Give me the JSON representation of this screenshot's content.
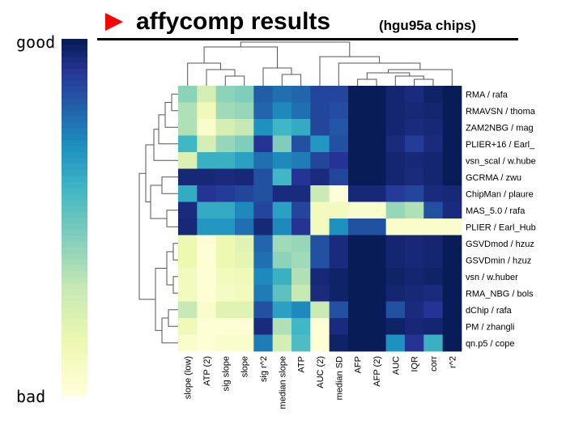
{
  "slide": {
    "title": "affycomp results",
    "subtitle": "(hgu95a chips)",
    "legend_good": "good",
    "legend_bad": "bad",
    "colors": {
      "accent": "#ff0000",
      "text": "#000000"
    }
  },
  "chart_data": {
    "type": "heatmap",
    "title": "affycomp results (hgu95a chips)",
    "columns": [
      "slope (low)",
      "ATP (2)",
      "sig slope",
      "slope",
      "sig r^2",
      "median slope",
      "ATP",
      "AUC (2)",
      "median SD",
      "AFP",
      "AFP (2)",
      "AUC",
      "IQR",
      "corr",
      "r^2"
    ],
    "rows": [
      "RMA / rafa",
      "RMAVSN / thoma",
      "ZAM2NBG / mag",
      "PLIER+16 / Earl_",
      "vsn_scal / w.hube",
      "GCRMA / zwu",
      "ChipMan / plaure",
      "MAS_5.0 / rafa",
      "PLIER / Earl_Hub",
      "GSVDmod / hzuz",
      "GSVDmin / hzuz",
      "vsn / w.huber",
      "RMA_NBG / bols",
      "dChip / rafa",
      "PM / zhangli",
      "qn.p5 / cope"
    ],
    "value_scale": "0 = bad (pale yellow), 1 = good (dark navy)",
    "values": [
      [
        0.42,
        0.25,
        0.42,
        0.45,
        0.82,
        0.78,
        0.8,
        0.88,
        0.88,
        1.0,
        1.0,
        0.97,
        0.95,
        0.98,
        1.0
      ],
      [
        0.35,
        0.12,
        0.38,
        0.4,
        0.8,
        0.72,
        0.78,
        0.88,
        0.86,
        1.0,
        1.0,
        0.97,
        0.96,
        0.97,
        1.0
      ],
      [
        0.35,
        0.05,
        0.25,
        0.3,
        0.7,
        0.58,
        0.62,
        0.88,
        0.84,
        1.0,
        1.0,
        0.97,
        0.95,
        0.96,
        1.0
      ],
      [
        0.58,
        0.25,
        0.4,
        0.45,
        0.92,
        0.45,
        0.85,
        0.68,
        0.85,
        1.0,
        1.0,
        0.95,
        0.9,
        0.95,
        1.0
      ],
      [
        0.22,
        0.6,
        0.6,
        0.65,
        0.78,
        0.72,
        0.75,
        0.88,
        0.92,
        1.0,
        1.0,
        0.97,
        0.96,
        0.97,
        1.0
      ],
      [
        0.96,
        0.96,
        0.95,
        0.96,
        0.85,
        0.58,
        0.92,
        0.95,
        0.88,
        1.0,
        1.0,
        0.97,
        0.95,
        0.97,
        1.0
      ],
      [
        0.62,
        0.92,
        0.9,
        0.88,
        0.85,
        0.95,
        0.95,
        0.28,
        0.0,
        0.96,
        0.96,
        0.9,
        0.88,
        0.95,
        0.96
      ],
      [
        0.95,
        0.62,
        0.62,
        0.72,
        0.88,
        0.65,
        0.88,
        0.1,
        0.1,
        0.05,
        0.05,
        0.4,
        0.35,
        0.85,
        0.95
      ],
      [
        0.96,
        0.68,
        0.68,
        0.78,
        0.96,
        0.72,
        0.92,
        0.1,
        0.7,
        0.85,
        0.85,
        0.05,
        0.05,
        0.05,
        0.05
      ],
      [
        0.15,
        0.02,
        0.15,
        0.2,
        0.8,
        0.38,
        0.4,
        0.85,
        0.95,
        1.0,
        1.0,
        0.97,
        0.96,
        0.97,
        1.0
      ],
      [
        0.15,
        0.02,
        0.15,
        0.18,
        0.78,
        0.42,
        0.38,
        0.85,
        0.95,
        1.0,
        1.0,
        0.97,
        0.96,
        0.97,
        1.0
      ],
      [
        0.1,
        0.02,
        0.1,
        0.12,
        0.72,
        0.6,
        0.35,
        0.96,
        0.98,
        1.0,
        1.0,
        0.98,
        0.97,
        0.98,
        1.0
      ],
      [
        0.1,
        0.02,
        0.08,
        0.1,
        0.75,
        0.52,
        0.3,
        0.95,
        0.98,
        1.0,
        1.0,
        0.97,
        0.96,
        0.95,
        1.0
      ],
      [
        0.3,
        0.05,
        0.2,
        0.2,
        0.85,
        0.65,
        0.72,
        0.28,
        0.85,
        1.0,
        1.0,
        0.85,
        0.95,
        0.92,
        1.0
      ],
      [
        0.12,
        0.02,
        0.02,
        0.02,
        0.95,
        0.35,
        0.58,
        0.02,
        0.95,
        1.0,
        1.0,
        0.98,
        0.96,
        0.97,
        1.0
      ],
      [
        0.05,
        0.02,
        0.05,
        0.05,
        0.75,
        0.25,
        0.55,
        0.02,
        0.98,
        1.0,
        1.0,
        0.7,
        0.92,
        0.6,
        1.0
      ]
    ],
    "row_dendrogram": true,
    "column_dendrogram": true,
    "legend": "vertical color bar at left, labeled good (top) and bad (bottom)"
  }
}
